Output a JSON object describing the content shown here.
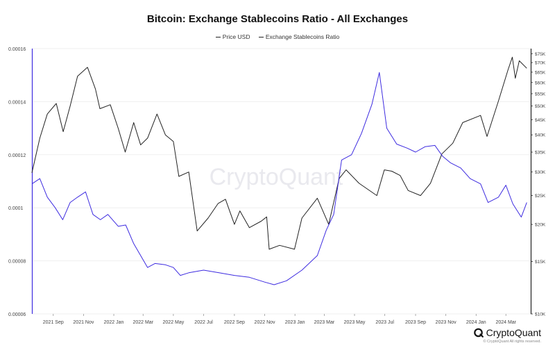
{
  "chart_data": {
    "type": "line",
    "title": "Bitcoin: Exchange Stablecoins Ratio - All Exchanges",
    "watermark": "CryptoQuant",
    "x_range": [
      "2021-07-20",
      "2024-04-20"
    ],
    "x_ticks": [
      {
        "date": "2021-09-01",
        "label": "2021 Sep"
      },
      {
        "date": "2021-11-01",
        "label": "2021 Nov"
      },
      {
        "date": "2022-01-01",
        "label": "2022 Jan"
      },
      {
        "date": "2022-03-01",
        "label": "2022 Mar"
      },
      {
        "date": "2022-05-01",
        "label": "2022 May"
      },
      {
        "date": "2022-07-01",
        "label": "2022 Jul"
      },
      {
        "date": "2022-09-01",
        "label": "2022 Sep"
      },
      {
        "date": "2022-11-01",
        "label": "2022 Nov"
      },
      {
        "date": "2023-01-01",
        "label": "2023 Jan"
      },
      {
        "date": "2023-03-01",
        "label": "2023 Mar"
      },
      {
        "date": "2023-05-01",
        "label": "2023 May"
      },
      {
        "date": "2023-07-01",
        "label": "2023 Jul"
      },
      {
        "date": "2023-09-01",
        "label": "2023 Sep"
      },
      {
        "date": "2023-11-01",
        "label": "2023 Nov"
      },
      {
        "date": "2024-01-01",
        "label": "2024 Jan"
      },
      {
        "date": "2024-03-01",
        "label": "2024 Mar"
      }
    ],
    "y_left": {
      "ylim": [
        6e-05,
        0.00016
      ],
      "ticks": [
        6e-05,
        8e-05,
        0.0001,
        0.00012,
        0.00014,
        0.00016
      ],
      "tick_labels": [
        "0.00006",
        "0.00008",
        "0.0001",
        "0.00012",
        "0.00014",
        "0.00016"
      ]
    },
    "y_right": {
      "scale": "log",
      "ylim": [
        10000,
        78000
      ],
      "ticks": [
        10000,
        15000,
        20000,
        25000,
        30000,
        35000,
        40000,
        45000,
        50000,
        55000,
        60000,
        65000,
        70000,
        75000
      ],
      "tick_labels": [
        "$10K",
        "$15K",
        "$20K",
        "$25K",
        "$30K",
        "$35K",
        "$40K",
        "$45K",
        "$50K",
        "$55K",
        "$60K",
        "$65K",
        "$70K",
        "$75K"
      ]
    },
    "grid": "horizontal",
    "legend_position": "top-center",
    "series": [
      {
        "name": "Price USD",
        "axis": "right",
        "color": "#222222",
        "points": [
          [
            "2021-07-20",
            29800
          ],
          [
            "2021-08-05",
            39000
          ],
          [
            "2021-08-20",
            47000
          ],
          [
            "2021-09-07",
            51000
          ],
          [
            "2021-09-21",
            41000
          ],
          [
            "2021-10-05",
            50000
          ],
          [
            "2021-10-20",
            63000
          ],
          [
            "2021-11-09",
            67500
          ],
          [
            "2021-11-25",
            57000
          ],
          [
            "2021-12-04",
            49000
          ],
          [
            "2021-12-25",
            50500
          ],
          [
            "2022-01-10",
            42000
          ],
          [
            "2022-01-24",
            35000
          ],
          [
            "2022-02-10",
            44000
          ],
          [
            "2022-02-24",
            37000
          ],
          [
            "2022-03-10",
            39000
          ],
          [
            "2022-03-29",
            47000
          ],
          [
            "2022-04-15",
            40000
          ],
          [
            "2022-05-01",
            38000
          ],
          [
            "2022-05-12",
            29000
          ],
          [
            "2022-06-01",
            30000
          ],
          [
            "2022-06-18",
            19000
          ],
          [
            "2022-07-10",
            21000
          ],
          [
            "2022-07-30",
            23500
          ],
          [
            "2022-08-14",
            24300
          ],
          [
            "2022-09-01",
            20000
          ],
          [
            "2022-09-12",
            22200
          ],
          [
            "2022-10-01",
            19500
          ],
          [
            "2022-10-25",
            20500
          ],
          [
            "2022-11-05",
            21200
          ],
          [
            "2022-11-10",
            16500
          ],
          [
            "2022-12-01",
            17000
          ],
          [
            "2022-12-31",
            16500
          ],
          [
            "2023-01-15",
            21000
          ],
          [
            "2023-02-15",
            24500
          ],
          [
            "2023-03-10",
            20000
          ],
          [
            "2023-03-31",
            28500
          ],
          [
            "2023-04-14",
            30500
          ],
          [
            "2023-05-10",
            27500
          ],
          [
            "2023-06-15",
            25000
          ],
          [
            "2023-06-30",
            30500
          ],
          [
            "2023-07-15",
            30200
          ],
          [
            "2023-08-01",
            29200
          ],
          [
            "2023-08-17",
            26000
          ],
          [
            "2023-09-11",
            25000
          ],
          [
            "2023-10-01",
            27500
          ],
          [
            "2023-10-24",
            34500
          ],
          [
            "2023-11-15",
            37500
          ],
          [
            "2023-12-05",
            44000
          ],
          [
            "2024-01-10",
            46500
          ],
          [
            "2024-01-23",
            39500
          ],
          [
            "2024-02-15",
            52000
          ],
          [
            "2024-03-05",
            66000
          ],
          [
            "2024-03-14",
            73000
          ],
          [
            "2024-03-20",
            62000
          ],
          [
            "2024-03-28",
            71000
          ],
          [
            "2024-04-12",
            67000
          ]
        ]
      },
      {
        "name": "Exchange Stablecoins Ratio",
        "axis": "left",
        "color": "#3d2be0",
        "points": [
          [
            "2021-07-20",
            0.000109
          ],
          [
            "2021-08-05",
            0.000111
          ],
          [
            "2021-08-20",
            0.000104
          ],
          [
            "2021-09-05",
            0.0001
          ],
          [
            "2021-09-20",
            9.55e-05
          ],
          [
            "2021-10-05",
            0.000102
          ],
          [
            "2021-10-20",
            0.000104
          ],
          [
            "2021-11-05",
            0.000106
          ],
          [
            "2021-11-20",
            9.75e-05
          ],
          [
            "2021-12-05",
            9.55e-05
          ],
          [
            "2021-12-20",
            9.75e-05
          ],
          [
            "2022-01-10",
            9.3e-05
          ],
          [
            "2022-01-25",
            9.35e-05
          ],
          [
            "2022-02-10",
            8.65e-05
          ],
          [
            "2022-03-10",
            7.75e-05
          ],
          [
            "2022-03-25",
            7.9e-05
          ],
          [
            "2022-04-15",
            7.85e-05
          ],
          [
            "2022-05-01",
            7.75e-05
          ],
          [
            "2022-05-15",
            7.45e-05
          ],
          [
            "2022-06-01",
            7.55e-05
          ],
          [
            "2022-07-01",
            7.65e-05
          ],
          [
            "2022-08-01",
            7.55e-05
          ],
          [
            "2022-09-01",
            7.45e-05
          ],
          [
            "2022-10-01",
            7.38e-05
          ],
          [
            "2022-11-01",
            7.2e-05
          ],
          [
            "2022-11-20",
            7.1e-05
          ],
          [
            "2022-12-15",
            7.25e-05
          ],
          [
            "2023-01-15",
            7.65e-05
          ],
          [
            "2023-02-15",
            8.2e-05
          ],
          [
            "2023-03-05",
            9.15e-05
          ],
          [
            "2023-03-20",
            9.75e-05
          ],
          [
            "2023-04-05",
            0.000118
          ],
          [
            "2023-04-25",
            0.00012
          ],
          [
            "2023-05-15",
            0.000128
          ],
          [
            "2023-06-05",
            0.000139
          ],
          [
            "2023-06-20",
            0.000151
          ],
          [
            "2023-07-05",
            0.00013
          ],
          [
            "2023-07-25",
            0.000124
          ],
          [
            "2023-08-15",
            0.0001225
          ],
          [
            "2023-09-01",
            0.000121
          ],
          [
            "2023-09-20",
            0.000123
          ],
          [
            "2023-10-10",
            0.0001235
          ],
          [
            "2023-10-25",
            0.0001195
          ],
          [
            "2023-11-10",
            0.000117
          ],
          [
            "2023-12-01",
            0.000115
          ],
          [
            "2023-12-20",
            0.000111
          ],
          [
            "2024-01-10",
            0.000109
          ],
          [
            "2024-01-25",
            0.000102
          ],
          [
            "2024-02-15",
            0.000104
          ],
          [
            "2024-03-01",
            0.0001085
          ],
          [
            "2024-03-15",
            0.0001015
          ],
          [
            "2024-04-01",
            9.65e-05
          ],
          [
            "2024-04-12",
            0.000102
          ]
        ]
      }
    ]
  },
  "footer": {
    "brand": "CryptoQuant",
    "copyright": "© CryptoQuant All rights reserved."
  }
}
